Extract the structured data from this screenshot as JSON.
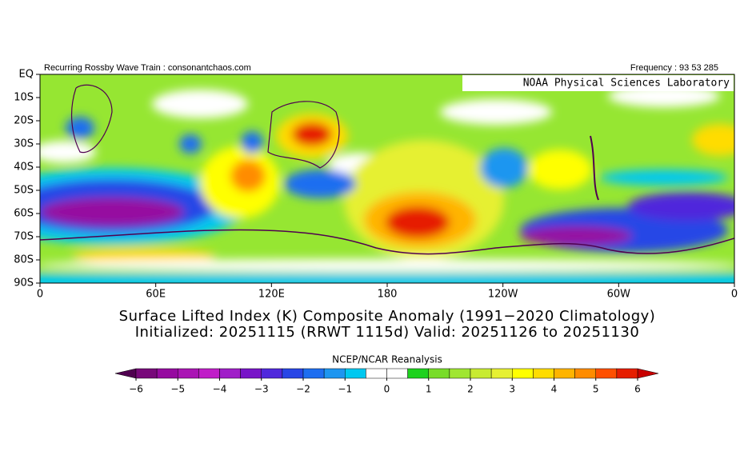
{
  "header": {
    "left": "Recurring Rossby Wave Train : consonantchaos.com",
    "right": "Frequency : 93 53 285",
    "lab": "NOAA Physical Sciences Laboratory"
  },
  "map": {
    "xlim": [
      0,
      360
    ],
    "ylim": [
      -90,
      0
    ],
    "xticks": [
      0,
      {
        "value": 60,
        "label": "60E"
      },
      {
        "value": 120,
        "label": "120E"
      },
      180,
      {
        "value": 240,
        "label": "120W"
      },
      {
        "value": 300,
        "label": "60W"
      },
      {
        "value": 360,
        "label": "0"
      }
    ],
    "yticks": [
      {
        "value": 0,
        "label": "EQ"
      },
      {
        "value": -10,
        "label": "10S"
      },
      {
        "value": -20,
        "label": "20S"
      },
      {
        "value": -30,
        "label": "30S"
      },
      {
        "value": -40,
        "label": "40S"
      },
      {
        "value": -50,
        "label": "50S"
      },
      {
        "value": -60,
        "label": "60S"
      },
      {
        "value": -70,
        "label": "70S"
      },
      {
        "value": -80,
        "label": "80S"
      },
      {
        "value": -90,
        "label": "90S"
      }
    ]
  },
  "title": {
    "line1": "Surface Lifted Index (K) Composite Anomaly (1991−2020 Climatology)",
    "line2": "Initialized: 20251115 (RRWT 1115d) Valid: 20251126 to 20251130"
  },
  "colorbar": {
    "title": "NCEP/NCAR Reanalysis",
    "lim": [
      -6,
      6
    ],
    "colors": [
      "#78087a",
      "#960aa0",
      "#aa14b4",
      "#c01ec8",
      "#a01ec8",
      "#7814c8",
      "#5028dc",
      "#2846e6",
      "#1e6ef0",
      "#1e96f0",
      "#00c8f0",
      "#ffffff",
      "#ffffff",
      "#1ed21e",
      "#78dc28",
      "#a0e632",
      "#c8eb32",
      "#e6f032",
      "#ffff00",
      "#ffdc00",
      "#ffb400",
      "#ff8c00",
      "#ff5000",
      "#e61e00"
    ],
    "under": "#500050",
    "over": "#c80000",
    "ticks": [
      {
        "value": -6,
        "label": "−6"
      },
      {
        "value": -5,
        "label": "−5"
      },
      {
        "value": -4,
        "label": "−4"
      },
      {
        "value": -3,
        "label": "−3"
      },
      {
        "value": -2,
        "label": "−2"
      },
      {
        "value": -1,
        "label": "−1"
      },
      0,
      1,
      2,
      3,
      4,
      5,
      6
    ]
  }
}
